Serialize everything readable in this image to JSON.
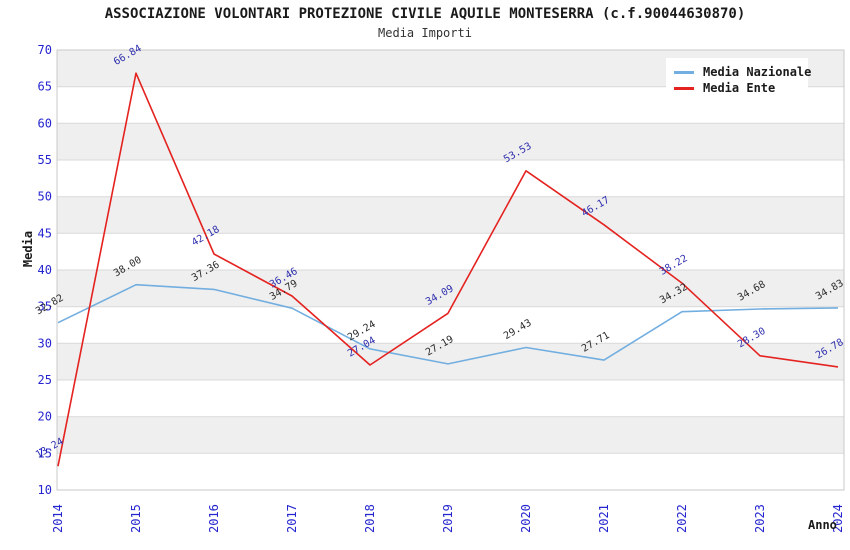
{
  "chart_data": {
    "type": "line",
    "title": "ASSOCIAZIONE VOLONTARI PROTEZIONE CIVILE AQUILE MONTESERRA (c.f.90044630870)",
    "subtitle": "Media Importi",
    "xlabel": "Anno",
    "ylabel": "Media",
    "categories": [
      "2014",
      "2015",
      "2016",
      "2017",
      "2018",
      "2019",
      "2020",
      "2021",
      "2022",
      "2023",
      "2024"
    ],
    "series": [
      {
        "name": "Media Nazionale",
        "color": "#72aee0",
        "label_color": "#2b2b2b",
        "values": [
          32.82,
          38.0,
          37.36,
          34.79,
          29.24,
          27.19,
          29.43,
          27.71,
          34.32,
          34.68,
          34.83
        ]
      },
      {
        "name": "Media Ente",
        "color": "#e42320",
        "label_color": "#2f2fae",
        "values": [
          13.24,
          66.84,
          42.18,
          36.46,
          27.04,
          34.09,
          53.53,
          46.17,
          38.22,
          28.3,
          26.78
        ]
      }
    ],
    "ylim": [
      10,
      70
    ],
    "ytick_step": 5,
    "grid": "horizontal gridlines with alternating gray stripes",
    "legend_position": "top-right",
    "colors": {
      "tick": "#2525d0",
      "stripe": "#efefef",
      "grid": "#d9d9d9",
      "border": "#c9c9c9"
    }
  }
}
